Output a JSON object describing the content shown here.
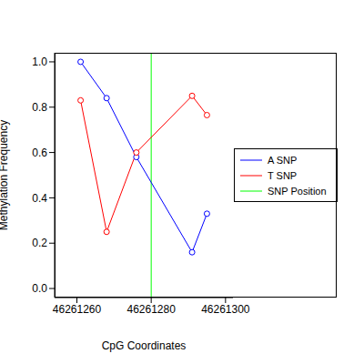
{
  "chart_data": {
    "type": "line",
    "x_label": "CpG Coordinates",
    "y_label": "Methylation Frequency",
    "x": [
      46261261,
      46261268,
      46261276,
      46261291,
      46261295
    ],
    "series": [
      {
        "name": "A SNP",
        "color": "#0000ff",
        "marker": "circle",
        "values": [
          1.0,
          0.84,
          0.58,
          0.16,
          0.33
        ]
      },
      {
        "name": "T SNP",
        "color": "#ff0000",
        "marker": "circle",
        "values": [
          0.83,
          0.25,
          0.6,
          0.85,
          0.765
        ]
      }
    ],
    "reference_lines": [
      {
        "name": "SNP Position",
        "x": 46261280,
        "color": "#00ff00"
      }
    ],
    "xlim": [
      46261254,
      46261302
    ],
    "xticks": [
      46261260,
      46261280,
      46261300
    ],
    "ylim": [
      -0.04,
      1.04
    ],
    "yticks": [
      {
        "value": 0,
        "label": "0.0"
      },
      {
        "value": 0.2,
        "label": "0.2"
      },
      {
        "value": 0.4,
        "label": "0.4"
      },
      {
        "value": 0.6,
        "label": "0.6"
      },
      {
        "value": 0.8,
        "label": "0.8"
      },
      {
        "value": 1.0,
        "label": "1.0"
      }
    ],
    "grid": false,
    "legend": "right"
  }
}
